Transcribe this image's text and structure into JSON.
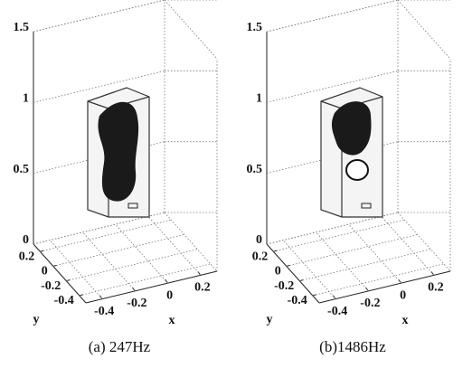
{
  "chart_data": [
    {
      "type": "3d-volume",
      "caption": "(a) 247Hz",
      "xlabel": "x",
      "ylabel": "y",
      "zlim": [
        0,
        1.5
      ],
      "zticks": [
        0,
        0.5,
        1,
        1.5
      ],
      "xlim": [
        -0.5,
        0.3
      ],
      "xticks": [
        -0.4,
        -0.2,
        0,
        0.2
      ],
      "ylim": [
        -0.5,
        0.3
      ],
      "yticks": [
        0.2,
        0,
        -0.2,
        -0.4
      ],
      "grid": true
    },
    {
      "type": "3d-volume",
      "caption": "(b)1486Hz",
      "xlabel": "x",
      "ylabel": "y",
      "zlim": [
        0,
        1.5
      ],
      "zticks": [
        0,
        0.5,
        1,
        1.5
      ],
      "xlim": [
        -0.5,
        0.3
      ],
      "xticks": [
        -0.4,
        -0.2,
        0,
        0.2
      ],
      "ylim": [
        -0.5,
        0.3
      ],
      "yticks": [
        0.2,
        0,
        -0.2,
        -0.4
      ],
      "grid": true
    }
  ]
}
